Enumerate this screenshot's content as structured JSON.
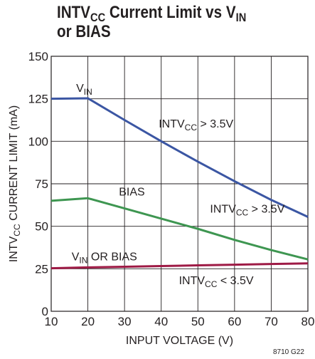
{
  "title": {
    "part1": "INTV",
    "sub1": "CC",
    "part2": " Current Limit vs V",
    "sub2": "IN",
    "line2": "or BIAS"
  },
  "figure_id": "8710 G22",
  "colors": {
    "vin": "#3b56a3",
    "bias": "#3e9651",
    "vin_or_bias": "#9e1a45",
    "grid": "#231f20"
  },
  "chart_data": {
    "type": "line",
    "title": "INTVCC Current Limit vs VIN or BIAS",
    "xlabel": "INPUT VOLTAGE (V)",
    "ylabel": {
      "main": "INTV",
      "sub": "CC",
      "rest": " CURRENT LIMIT (mA)"
    },
    "xlim": [
      10,
      80
    ],
    "ylim": [
      0,
      150
    ],
    "xticks": [
      10,
      20,
      30,
      40,
      50,
      60,
      70,
      80
    ],
    "yticks": [
      0,
      25,
      50,
      75,
      100,
      125,
      150
    ],
    "grid": true,
    "series": [
      {
        "key": "vin",
        "name": "VIN",
        "x": [
          10,
          20,
          30,
          40,
          50,
          60,
          70,
          80
        ],
        "y": [
          125,
          125.3,
          112.5,
          100,
          88,
          76.5,
          65.5,
          55.5
        ]
      },
      {
        "key": "bias",
        "name": "BIAS",
        "x": [
          10,
          20,
          30,
          40,
          50,
          60,
          70,
          80
        ],
        "y": [
          65,
          66.5,
          60.5,
          54.5,
          48.5,
          42,
          36,
          30.5
        ]
      },
      {
        "key": "vin_or_bias",
        "name": "VIN OR BIAS",
        "x": [
          10,
          20,
          30,
          40,
          50,
          60,
          70,
          80
        ],
        "y": [
          25.3,
          25.8,
          26.2,
          26.6,
          27,
          27.4,
          27.8,
          28.2
        ]
      }
    ],
    "annotations": [
      {
        "id": "vin-label",
        "main": "V",
        "sub": "IN",
        "rest": "",
        "x": 19,
        "y": 129
      },
      {
        "id": "vin-cond",
        "main": "INTV",
        "sub": "CC",
        "rest": " > 3.5V",
        "x": 49.5,
        "y": 108
      },
      {
        "id": "bias-label",
        "main": "BIAS",
        "sub": "",
        "rest": "",
        "x": 32,
        "y": 68
      },
      {
        "id": "bias-cond",
        "main": "INTV",
        "sub": "CC",
        "rest": " > 3.5V",
        "x": 63.5,
        "y": 58
      },
      {
        "id": "vinbias-label",
        "main": "V",
        "sub": "IN",
        "rest": " OR BIAS",
        "x": 24.5,
        "y": 30
      },
      {
        "id": "vinbias-cond",
        "main": "INTV",
        "sub": "CC",
        "rest": " < 3.5V",
        "x": 55,
        "y": 16
      }
    ]
  }
}
